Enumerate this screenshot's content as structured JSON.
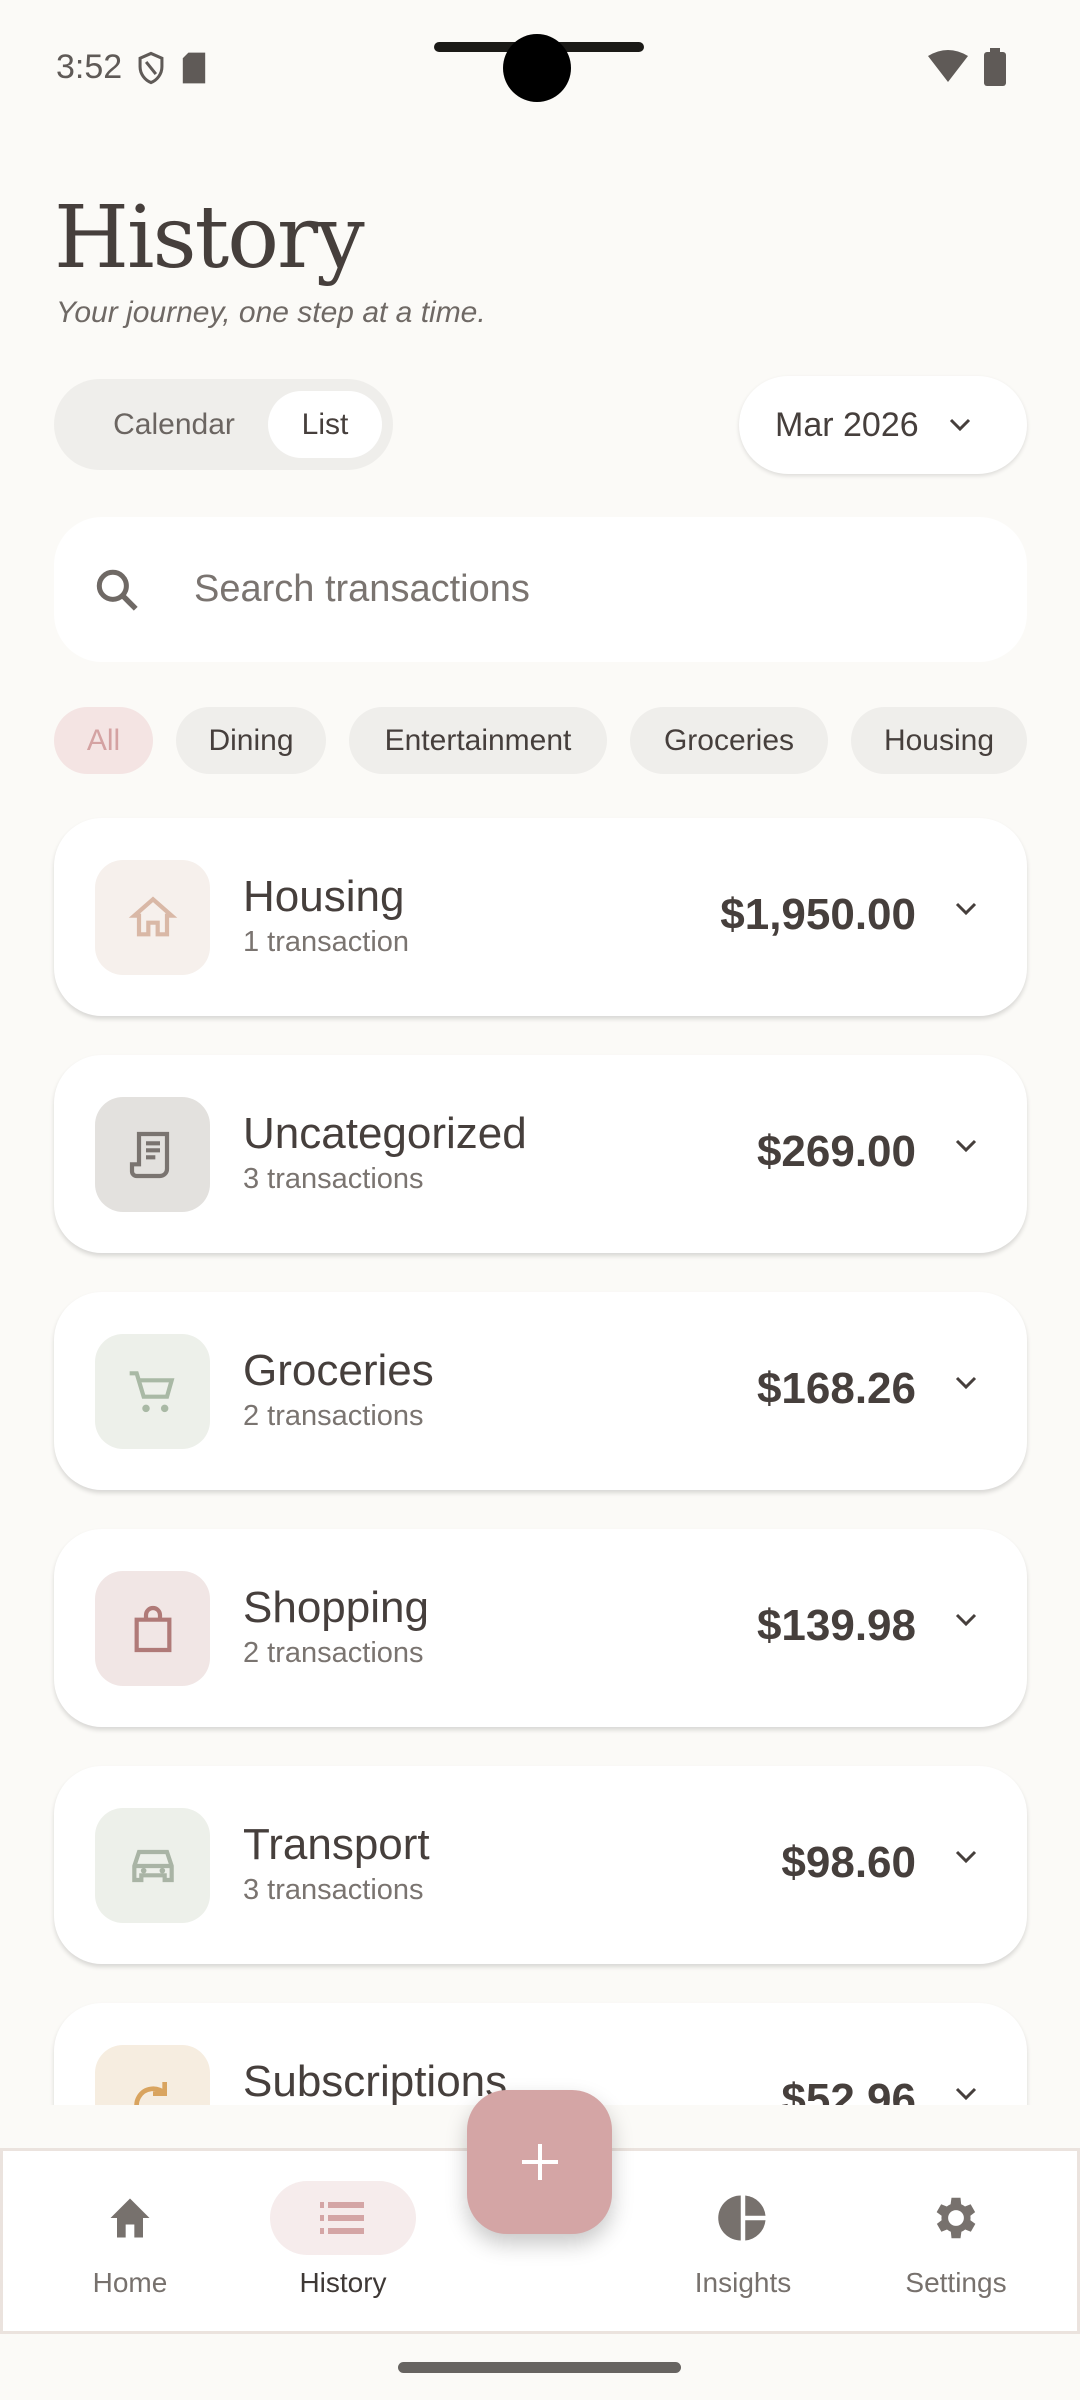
{
  "status_bar": {
    "time": "3:52",
    "icons": [
      "shield-icon",
      "sd-card-icon",
      "wifi-icon",
      "battery-icon"
    ]
  },
  "header": {
    "title": "History",
    "subtitle": "Your journey, one step at a time."
  },
  "view_toggle": {
    "options": [
      "Calendar",
      "List"
    ],
    "selected": "List"
  },
  "month_selector": {
    "value": "Mar 2026"
  },
  "search": {
    "placeholder": "Search transactions"
  },
  "filters": {
    "chips": [
      "All",
      "Dining",
      "Entertainment",
      "Groceries",
      "Housing"
    ],
    "selected": "All"
  },
  "categories": [
    {
      "name": "Housing",
      "count": "1 transaction",
      "amount": "$1,950.00",
      "icon": "home-icon",
      "color": "#d9b8a6",
      "bg": "#f6f0ec"
    },
    {
      "name": "Uncategorized",
      "count": "3 transactions",
      "amount": "$269.00",
      "icon": "receipt-icon",
      "color": "#7a7470",
      "bg": "#e3e1de"
    },
    {
      "name": "Groceries",
      "count": "2 transactions",
      "amount": "$168.26",
      "icon": "cart-icon",
      "color": "#a9b9a5",
      "bg": "#edf0ea"
    },
    {
      "name": "Shopping",
      "count": "2 transactions",
      "amount": "$139.98",
      "icon": "shopping-bag-icon",
      "color": "#b07a78",
      "bg": "#f1e6e5"
    },
    {
      "name": "Transport",
      "count": "3 transactions",
      "amount": "$98.60",
      "icon": "car-icon",
      "color": "#a9b4a5",
      "bg": "#edf0ea"
    },
    {
      "name": "Subscriptions",
      "count": "",
      "amount": "$52.96",
      "icon": "refresh-icon",
      "color": "#d9a45f",
      "bg": "#f6ede0"
    }
  ],
  "bottom_nav": {
    "items": [
      "Home",
      "History",
      "Insights",
      "Settings"
    ],
    "selected": "History"
  },
  "fab": {
    "icon": "plus-icon"
  },
  "colors": {
    "accent": "#d4a5a5",
    "background": "#fbfaf7",
    "text": "#463f3c"
  }
}
